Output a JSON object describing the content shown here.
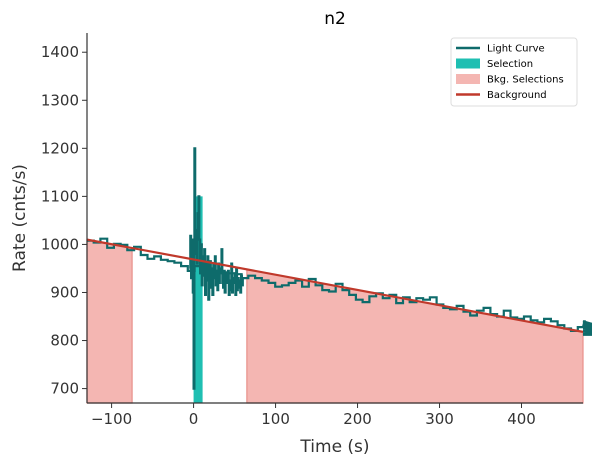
{
  "chart_data": {
    "type": "line",
    "title": "n2",
    "xlabel": "Time (s)",
    "ylabel": "Rate (cnts/s)",
    "xlim": [
      -130,
      475
    ],
    "ylim": [
      670,
      1440
    ],
    "xticks": [
      -100,
      0,
      100,
      200,
      300,
      400
    ],
    "yticks": [
      700,
      800,
      900,
      1000,
      1100,
      1200,
      1300,
      1400
    ],
    "xtick_labels": [
      "−100",
      "0",
      "100",
      "200",
      "300",
      "400"
    ],
    "ytick_labels": [
      "700",
      "800",
      "900",
      "1000",
      "1100",
      "1200",
      "1300",
      "1400"
    ],
    "grid": false,
    "legend_position": "top-right",
    "colors": {
      "light_curve": "#0e6b6b",
      "selection": "#1fbfb2",
      "bkg_selection": "#f4b6b2",
      "bkg_selection_edge": "#e8908a",
      "background": "#c0392b"
    },
    "legend": [
      {
        "label": "Light Curve",
        "kind": "line",
        "color": "#0e6b6b"
      },
      {
        "label": "Selection",
        "kind": "patch",
        "color": "#1fbfb2"
      },
      {
        "label": "Bkg. Selections",
        "kind": "patch",
        "color": "#f4b6b2"
      },
      {
        "label": "Background",
        "kind": "line",
        "color": "#c0392b"
      }
    ],
    "selection": [
      0,
      11
    ],
    "bkg_selections": [
      [
        -130,
        -75
      ],
      [
        65,
        475
      ]
    ],
    "background_fit": {
      "x": [
        -130,
        475
      ],
      "y": [
        1010,
        818
      ]
    },
    "light_curve_coarse": {
      "bin_width": 8.2,
      "start": -130,
      "values": [
        1008,
        1004,
        1012,
        993,
        1001,
        999,
        988,
        995,
        978,
        970,
        975,
        968,
        965,
        962,
        955,
        945,
        955,
        940,
        948,
        945,
        942,
        940,
        938,
        930,
        935,
        930,
        925,
        920,
        912,
        915,
        920,
        925,
        912,
        928,
        915,
        905,
        902,
        918,
        905,
        895,
        885,
        880,
        892,
        898,
        888,
        895,
        878,
        890,
        880,
        888,
        885,
        890,
        875,
        868,
        865,
        872,
        860,
        852,
        862,
        868,
        855,
        850,
        862,
        848,
        845,
        850,
        842,
        838,
        845,
        840,
        832,
        825,
        820,
        828,
        840,
        835,
        832,
        830,
        835,
        825,
        828,
        832,
        825,
        820,
        815,
        812,
        818
      ]
    },
    "light_curve_fine": {
      "x": [
        -5,
        -4,
        -3,
        -2,
        -1,
        0,
        1,
        2,
        3,
        4,
        5,
        6,
        7,
        8,
        9,
        10,
        11,
        12,
        13,
        14,
        15,
        16,
        17,
        18,
        19,
        20,
        21,
        22,
        23,
        24,
        25,
        26,
        27,
        28,
        29,
        30,
        31,
        32,
        33,
        34,
        35,
        36,
        37,
        38,
        39,
        40,
        41,
        42,
        43,
        44,
        45,
        46,
        47,
        48,
        49,
        50,
        51,
        52,
        53,
        54,
        55,
        56,
        57,
        58,
        59,
        60
      ],
      "y": [
        950,
        1018,
        930,
        1010,
        900,
        700,
        1200,
        980,
        1030,
        960,
        1065,
        1100,
        1010,
        940,
        1000,
        915,
        975,
        935,
        990,
        895,
        960,
        925,
        975,
        885,
        945,
        965,
        910,
        950,
        895,
        960,
        930,
        975,
        915,
        945,
        905,
        960,
        920,
        950,
        940,
        990,
        920,
        910,
        945,
        900,
        930,
        940,
        920,
        945,
        895,
        925,
        905,
        960,
        900,
        930,
        920,
        940,
        895,
        950,
        905,
        930,
        910,
        925,
        900,
        935,
        915,
        930
      ]
    }
  }
}
